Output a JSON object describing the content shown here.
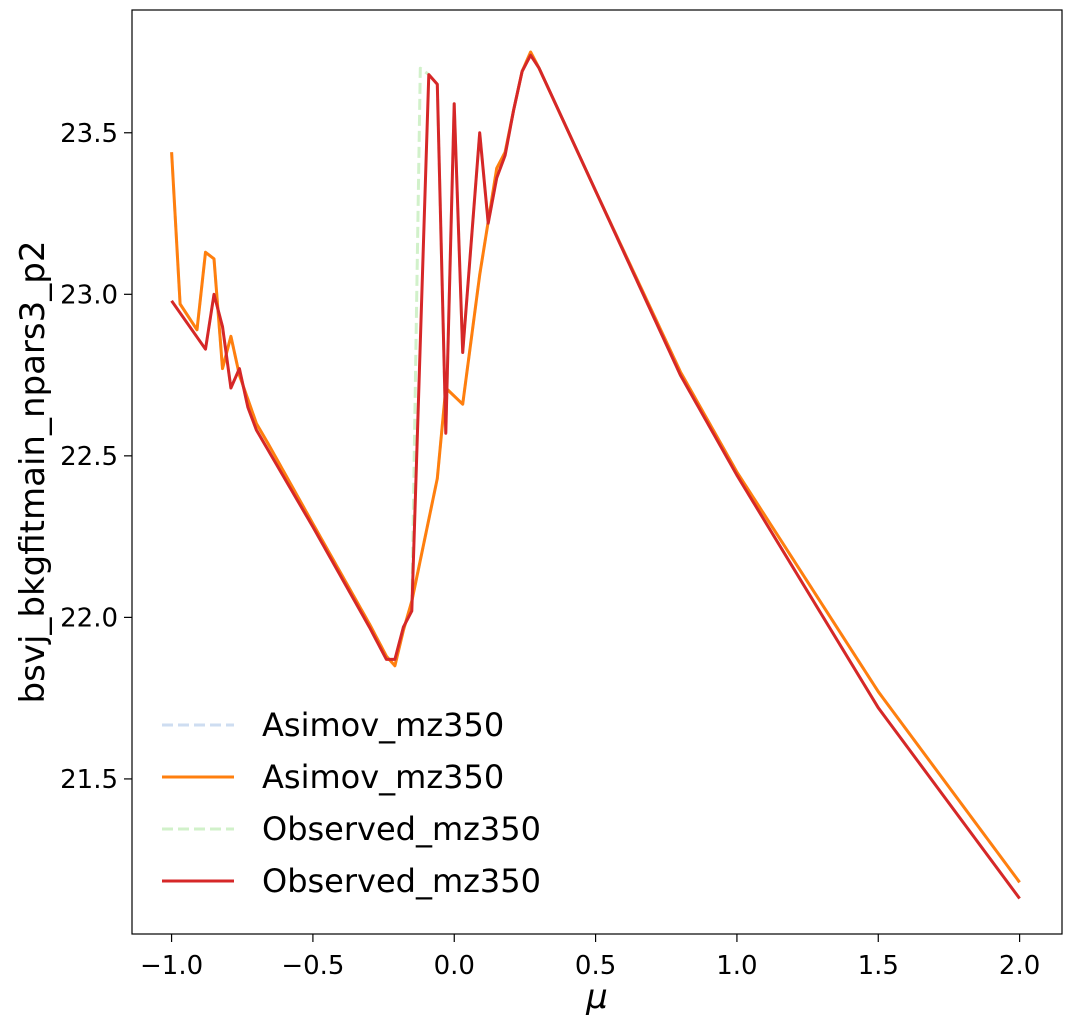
{
  "chart_data": {
    "type": "line",
    "xlabel": "μ",
    "ylabel": "bsvj_bkgfitmain_npars3_p2",
    "xlim": [
      -1.14,
      2.15
    ],
    "ylim": [
      21.02,
      23.88
    ],
    "xticks": [
      -1.0,
      -0.5,
      0.0,
      0.5,
      1.0,
      1.5,
      2.0
    ],
    "xtick_labels": [
      "−1.0",
      "−0.5",
      "0.0",
      "0.5",
      "1.0",
      "1.5",
      "2.0"
    ],
    "yticks": [
      21.5,
      22.0,
      22.5,
      23.0,
      23.5
    ],
    "ytick_labels": [
      "21.5",
      "22.0",
      "22.5",
      "23.0",
      "23.5"
    ],
    "grid": false,
    "legend_position": "lower-left",
    "series": [
      {
        "name": "Asimov_mz350",
        "color": "#aec7e8",
        "style": "dashed",
        "opacity": 0.6,
        "x": [
          -1.0,
          -0.97,
          -0.91,
          -0.88,
          -0.85,
          -0.82,
          -0.79,
          -0.76,
          -0.7,
          -0.66,
          -0.5,
          -0.3,
          -0.24,
          -0.21,
          -0.18,
          -0.15,
          -0.06,
          -0.03,
          0.03,
          0.09,
          0.15,
          0.18,
          0.21,
          0.24,
          0.27,
          0.3,
          0.5,
          0.8,
          1.0,
          1.5,
          2.0
        ],
        "y": [
          23.44,
          22.97,
          22.89,
          23.13,
          23.11,
          22.77,
          22.87,
          22.75,
          22.6,
          22.54,
          22.29,
          21.98,
          21.88,
          21.85,
          21.96,
          22.05,
          22.43,
          22.71,
          22.66,
          23.06,
          23.39,
          23.44,
          23.57,
          23.69,
          23.75,
          23.7,
          23.32,
          22.76,
          22.45,
          21.77,
          21.18
        ]
      },
      {
        "name": "Asimov_mz350",
        "color": "#ff7f0e",
        "style": "solid",
        "opacity": 1,
        "x": [
          -1.0,
          -0.97,
          -0.91,
          -0.88,
          -0.85,
          -0.82,
          -0.79,
          -0.76,
          -0.7,
          -0.66,
          -0.5,
          -0.3,
          -0.24,
          -0.21,
          -0.18,
          -0.15,
          -0.06,
          -0.03,
          0.03,
          0.09,
          0.15,
          0.18,
          0.21,
          0.24,
          0.27,
          0.3,
          0.5,
          0.8,
          1.0,
          1.5,
          2.0
        ],
        "y": [
          23.44,
          22.97,
          22.89,
          23.13,
          23.11,
          22.77,
          22.87,
          22.75,
          22.6,
          22.54,
          22.29,
          21.98,
          21.88,
          21.85,
          21.96,
          22.05,
          22.43,
          22.71,
          22.66,
          23.06,
          23.39,
          23.44,
          23.57,
          23.69,
          23.75,
          23.7,
          23.32,
          22.76,
          22.45,
          21.77,
          21.18
        ]
      },
      {
        "name": "Observed_mz350",
        "color": "#98df8a",
        "style": "dashed",
        "opacity": 0.45,
        "x": [
          -1.0,
          -0.88,
          -0.85,
          -0.82,
          -0.79,
          -0.76,
          -0.73,
          -0.7,
          -0.5,
          -0.3,
          -0.24,
          -0.21,
          -0.18,
          -0.15,
          -0.12,
          -0.09,
          -0.06,
          -0.03,
          0.0,
          0.03,
          0.09,
          0.12,
          0.15,
          0.18,
          0.21,
          0.24,
          0.27,
          0.3,
          0.5,
          0.8,
          1.0,
          1.5,
          2.0
        ],
        "y": [
          22.98,
          22.83,
          23.0,
          22.9,
          22.71,
          22.77,
          22.65,
          22.58,
          22.28,
          21.97,
          21.87,
          21.87,
          21.97,
          22.02,
          23.7,
          23.68,
          23.65,
          22.57,
          23.59,
          22.82,
          23.5,
          23.22,
          23.36,
          23.43,
          23.57,
          23.69,
          23.74,
          23.7,
          23.32,
          22.75,
          22.44,
          21.72,
          21.13
        ]
      },
      {
        "name": "Observed_mz350",
        "color": "#d62728",
        "style": "solid",
        "opacity": 1,
        "x": [
          -1.0,
          -0.88,
          -0.85,
          -0.82,
          -0.79,
          -0.76,
          -0.73,
          -0.7,
          -0.5,
          -0.3,
          -0.24,
          -0.21,
          -0.18,
          -0.15,
          -0.09,
          -0.06,
          -0.03,
          0.0,
          0.03,
          0.09,
          0.12,
          0.15,
          0.18,
          0.21,
          0.24,
          0.27,
          0.3,
          0.5,
          0.8,
          1.0,
          1.5,
          2.0
        ],
        "y": [
          22.98,
          22.83,
          23.0,
          22.9,
          22.71,
          22.77,
          22.65,
          22.58,
          22.28,
          21.97,
          21.87,
          21.87,
          21.97,
          22.02,
          23.68,
          23.65,
          22.57,
          23.59,
          22.82,
          23.5,
          23.22,
          23.36,
          23.43,
          23.57,
          23.69,
          23.74,
          23.7,
          23.32,
          22.75,
          22.44,
          21.72,
          21.13
        ]
      }
    ]
  }
}
